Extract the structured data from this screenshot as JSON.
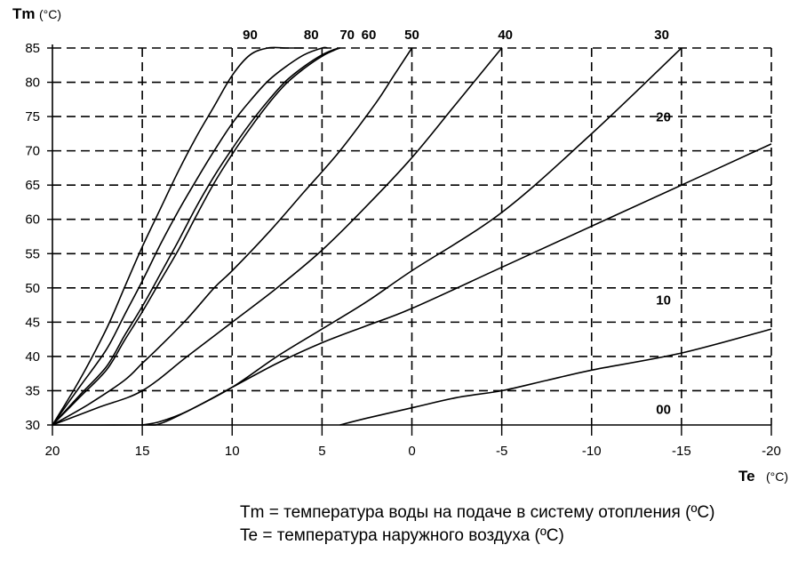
{
  "chart_data": {
    "type": "line",
    "ylabel": "Tm",
    "ylabel_unit": "(°C)",
    "xlabel": "Te",
    "xlabel_unit": "(°C)",
    "xlim": [
      20,
      -20
    ],
    "ylim": [
      30,
      85
    ],
    "x_reversed": true,
    "grid": "dashed",
    "x_ticks": [
      "20",
      "15",
      "10",
      "5",
      "0",
      "-5",
      "-10",
      "-15",
      "-20"
    ],
    "y_ticks": [
      "30",
      "35",
      "40",
      "45",
      "50",
      "55",
      "60",
      "65",
      "70",
      "75",
      "80",
      "85"
    ],
    "series": [
      {
        "name": "90",
        "x": [
          20,
          18.5,
          17,
          16,
          15,
          14,
          13,
          12,
          11,
          10,
          9,
          8,
          7,
          6
        ],
        "y": [
          30,
          36.5,
          44,
          50,
          56,
          61.5,
          67,
          72,
          76.5,
          81,
          84,
          85,
          85,
          85
        ]
      },
      {
        "name": "80",
        "x": [
          20,
          18.5,
          17,
          16,
          15,
          14,
          13,
          12,
          11,
          10,
          9,
          8,
          7,
          6,
          5,
          4.7
        ],
        "y": [
          30,
          35.5,
          41,
          46,
          51,
          56.3,
          61.2,
          65.7,
          70,
          74,
          77.3,
          80.2,
          82.3,
          84,
          85,
          85
        ]
      },
      {
        "name": "70",
        "x": [
          20,
          18.5,
          17,
          16,
          15,
          14,
          13,
          12,
          11,
          10,
          9,
          8,
          7,
          6,
          5,
          4.3,
          4
        ],
        "y": [
          30,
          34.3,
          38.5,
          43,
          47.3,
          52,
          56.8,
          61.8,
          66.3,
          70.3,
          74,
          77.3,
          80.2,
          82.3,
          84,
          84.8,
          85
        ]
      },
      {
        "name": "60",
        "x": [
          20,
          18.5,
          17,
          16,
          15,
          14,
          13,
          12,
          11,
          10,
          9,
          8,
          7,
          6,
          5,
          4.3,
          4
        ],
        "y": [
          30,
          34,
          38,
          42.3,
          46.5,
          51,
          55.5,
          60.5,
          65.3,
          69.5,
          73.3,
          76.8,
          79.8,
          82,
          83.8,
          84.7,
          85
        ]
      },
      {
        "name": "50",
        "x": [
          20,
          18,
          16,
          15,
          14,
          12.5,
          11,
          10,
          8,
          6,
          4,
          2,
          1,
          0
        ],
        "y": [
          30,
          33,
          36.5,
          39,
          41.5,
          45.5,
          50,
          52.5,
          58,
          64,
          70,
          77,
          81,
          85
        ]
      },
      {
        "name": "40",
        "x": [
          20,
          17.5,
          15,
          12.5,
          10,
          7.5,
          5,
          2.5,
          0,
          -2.5,
          -5
        ],
        "y": [
          30,
          32.5,
          35,
          40,
          45,
          50,
          55.5,
          62,
          69,
          77,
          85
        ]
      },
      {
        "name": "30",
        "x": [
          20,
          15,
          14,
          12.5,
          10,
          7.5,
          5,
          2.5,
          0,
          -5,
          -10,
          -15
        ],
        "y": [
          30,
          30,
          30.2,
          32,
          35.5,
          40,
          44,
          48,
          52.5,
          61,
          72.5,
          85
        ]
      },
      {
        "name": "20",
        "x": [
          15,
          14,
          12.5,
          10,
          7.5,
          5,
          2.5,
          0,
          -5,
          -10,
          -15,
          -20
        ],
        "y": [
          30,
          30.5,
          32,
          35.5,
          39,
          42,
          44.5,
          47,
          53,
          59,
          65,
          71
        ]
      },
      {
        "name": "10",
        "x": [
          4,
          2.5,
          0,
          -2.5,
          -5,
          -7.5,
          -10,
          -15,
          -20
        ],
        "y": [
          30,
          31,
          32.5,
          34,
          35,
          36.5,
          38,
          40.5,
          44
        ]
      },
      {
        "name": "00",
        "x": [],
        "y": []
      }
    ],
    "curve_labels": [
      {
        "text": "90",
        "x": 9,
        "y": 86.3
      },
      {
        "text": "80",
        "x": 5.6,
        "y": 86.3
      },
      {
        "text": "70",
        "x": 3.6,
        "y": 86.3
      },
      {
        "text": "60",
        "x": 2.4,
        "y": 86.3
      },
      {
        "text": "50",
        "x": 0,
        "y": 86.3
      },
      {
        "text": "40",
        "x": -5.2,
        "y": 86.3
      },
      {
        "text": "30",
        "x": -13.9,
        "y": 86.3
      },
      {
        "text": "20",
        "x": -14,
        "y": 74.3
      },
      {
        "text": "10",
        "x": -14,
        "y": 47.6
      },
      {
        "text": "00",
        "x": -14,
        "y": 31.6
      }
    ]
  },
  "legend_lines": [
    "Tm = температура воды на подаче в систему отопления (ºC)",
    "Te = температура наружного воздуха (ºC)"
  ]
}
